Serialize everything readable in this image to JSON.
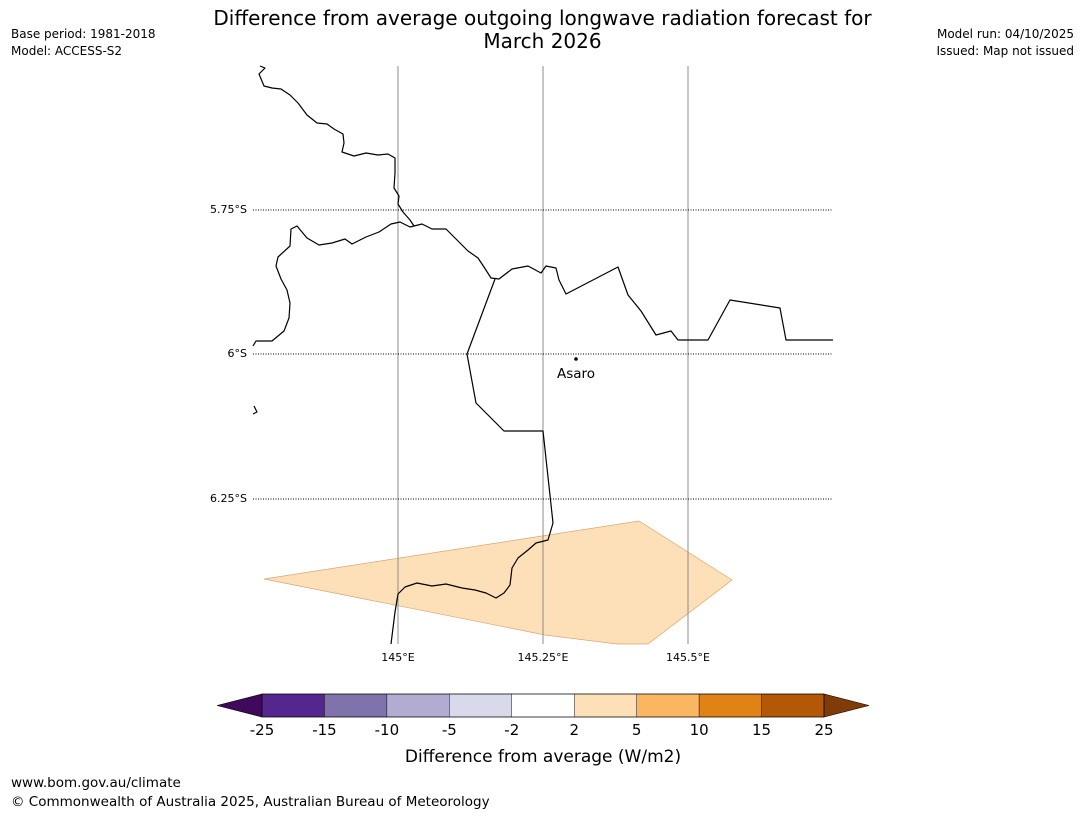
{
  "title": {
    "line1": "Difference from average outgoing longwave radiation forecast for",
    "line2": "March 2026"
  },
  "meta_left": {
    "base_period": "Base period: 1981-2018",
    "model": "Model: ACCESS-S2"
  },
  "meta_right": {
    "model_run": "Model run: 04/10/2025",
    "issued": "Issued: Map not issued"
  },
  "map": {
    "lat_labels": [
      "5.75°S",
      "6°S",
      "6.25°S"
    ],
    "lon_labels": [
      "145°E",
      "145.25°E",
      "145.5°E"
    ],
    "place": {
      "name": "Asaro"
    },
    "anomaly_color": "#fde0b7"
  },
  "colorbar": {
    "label": "Difference from average (W/m2)",
    "ticks": [
      "-25",
      "-15",
      "-10",
      "-5",
      "-2",
      "2",
      "5",
      "10",
      "15",
      "25"
    ],
    "colors": [
      "#3f0a5c",
      "#54278f",
      "#8073ac",
      "#b2abd2",
      "#d8daeb",
      "#ffffff",
      "#fde0b7",
      "#fbb661",
      "#e08214",
      "#b35806",
      "#7f3b08"
    ]
  },
  "footer": {
    "url": "www.bom.gov.au/climate",
    "copyright": "© Commonwealth of Australia 2025, Australian Bureau of Meteorology"
  }
}
